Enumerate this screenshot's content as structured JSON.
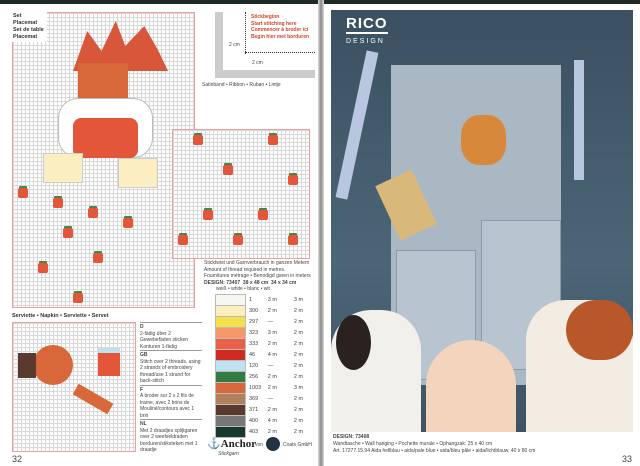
{
  "left_page": {
    "set_labels": [
      "Set",
      "Placemat",
      "Set de table",
      "Placemat"
    ],
    "start_note": [
      "Stickbeginn",
      "Start stitching here",
      "Commencer à broder ici",
      "Begin hier met borduren"
    ],
    "measure": "2 cm",
    "ribbon": "Satinband • Ribbon • Ruban • Lintje",
    "serviette_title": "Serviette • Napkin • Serviette • Servet",
    "instructions": [
      {
        "code": "D",
        "text": "2-fädig über 2 Gewebefäden sticken Konturen 1-fädig"
      },
      {
        "code": "GB",
        "text": "Stitch over 2 threads, using 2 strands of embroidery thread/use 1 strand for back-stitch"
      },
      {
        "code": "F",
        "text": "A broder sur 2 x 2 fils de trame, avec 2 brins de Mouliné/contours avec 1 brin"
      },
      {
        "code": "NL",
        "text": "Met 2 draadjes splijtgaren over 2 weefseldraden borduren/stiksteken met 1 draadje"
      }
    ],
    "thread_header": [
      "Sticktwist und Garnverbrauch in ganzen Metern",
      "Amount of thread required in metres.",
      "Fournitures métrage • Benodigd garen in meters"
    ],
    "design_line": {
      "design": "DESIGN: 73407",
      "size1": "38 x 48 cm",
      "size2": "34 x 34 cm"
    },
    "white_label": "weiß • white • blanc • wit",
    "threads": [
      {
        "color": "#f7f7f2",
        "no": "1",
        "a": "3 m",
        "b": "3 m"
      },
      {
        "color": "#fbefc2",
        "no": "300",
        "a": "2 m",
        "b": "2 m"
      },
      {
        "color": "#f6e04a",
        "no": "297",
        "a": "—",
        "b": "2 m"
      },
      {
        "color": "#f49a6a",
        "no": "323",
        "a": "3 m",
        "b": "2 m"
      },
      {
        "color": "#ea6148",
        "no": "333",
        "a": "2 m",
        "b": "2 m"
      },
      {
        "color": "#cf2b22",
        "no": "46",
        "a": "4 m",
        "b": "2 m"
      },
      {
        "color": "#bfe2f2",
        "no": "120",
        "a": "—",
        "b": "2 m"
      },
      {
        "color": "#347a45",
        "no": "256",
        "a": "2 m",
        "b": "2 m"
      },
      {
        "color": "#d8683a",
        "no": "1003",
        "a": "2 m",
        "b": "3 m"
      },
      {
        "color": "#b3805f",
        "no": "369",
        "a": "—",
        "b": "2 m"
      },
      {
        "color": "#5a3a2e",
        "no": "371",
        "a": "2 m",
        "b": "2 m"
      },
      {
        "color": "#777777",
        "no": "400",
        "a": "4 m",
        "b": "2 m"
      },
      {
        "color": "#183a2c",
        "no": "403",
        "a": "2 m",
        "b": "2 m"
      }
    ],
    "anchor_logo": "Anchor",
    "anchor_sub": "Stickgarn",
    "von": "von",
    "coats": "Coats GmbH",
    "page_number": "32"
  },
  "right_page": {
    "brand": "RICO",
    "brand_sub": "DESIGN",
    "design": "DESIGN: 73408",
    "line1": "Wandtasche • Wall hanging • Pochette murale • Ophangzak: 25 x 40 cm",
    "line2": "Art. 17277.15.94 Aida hellblau • aida/pale blue • aida/bleu pâle • aida/lichtblauw, 40 x 80 cm",
    "page_number": "33"
  }
}
